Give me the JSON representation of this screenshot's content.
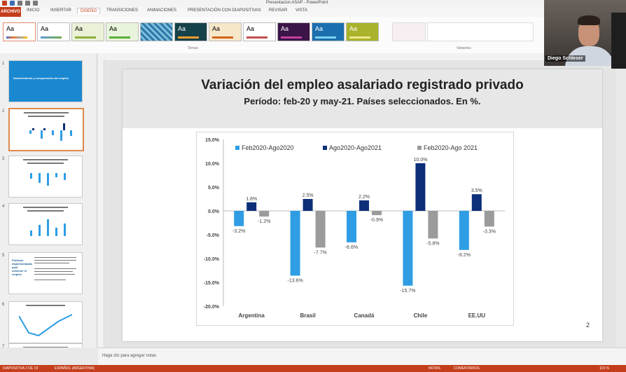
{
  "window": {
    "title": "Presentacion ASAP - PowerPoint"
  },
  "ribbon": {
    "tabs": [
      "ARCHIVO",
      "INICIO",
      "INSERTAR",
      "DISEÑO",
      "TRANSICIONES",
      "ANIMACIONES",
      "PRESENTACIÓN CON DIAPOSITIVAS",
      "REVISAR",
      "VISTA"
    ],
    "active_tab": "DISEÑO",
    "group_temas": "Temas",
    "group_variantes": "Variantes",
    "theme_label": "Aa"
  },
  "thumbnails": [
    {
      "num": "1",
      "title": "Sostenimiento y recuperación del empleo"
    },
    {
      "num": "2"
    },
    {
      "num": "3"
    },
    {
      "num": "4"
    },
    {
      "num": "5",
      "title": "Políticas implementadas para sostener el empleo"
    },
    {
      "num": "6"
    },
    {
      "num": "7"
    }
  ],
  "slide": {
    "title": "Variación del empleo asalariado registrado privado",
    "subtitle": "Período: feb-20 y may-21. Países seleccionados. En %.",
    "number": "2"
  },
  "notes": {
    "placeholder": "Haga clic para agregar notas"
  },
  "status": {
    "slide_info": "DIAPOSITIVA 2 DE 19",
    "language": "ESPAÑOL (ARGENTINA)",
    "notes_btn": "NOTAS",
    "comments_btn": "COMENTARIOS",
    "zoom": "115 %"
  },
  "webcam": {
    "name": "Diego Schleser"
  },
  "colors": {
    "accent": "#c43e1c",
    "series1": "#2e9de4",
    "series2": "#0d2f7a",
    "series3": "#9b9b9b"
  },
  "chart_data": {
    "type": "bar",
    "categories": [
      "Argentina",
      "Brasil",
      "Canadá",
      "Chile",
      "EE.UU"
    ],
    "series": [
      {
        "name": "Feb2020-Ago2020",
        "values": [
          -3.2,
          -13.6,
          -6.6,
          -15.7,
          -8.2
        ],
        "labels": [
          "-3.2%",
          "-13.6%",
          "-6.6%",
          "-15.7%",
          "-8.2%"
        ]
      },
      {
        "name": "Ago2020-Ago2021",
        "values": [
          1.8,
          2.5,
          2.2,
          10.0,
          3.5
        ],
        "labels": [
          "1.8%",
          "2.5%",
          "2.2%",
          "10.0%",
          "3.5%"
        ]
      },
      {
        "name": "Feb2020-Ago 2021",
        "values": [
          -1.2,
          -7.7,
          -0.9,
          -5.8,
          -3.3
        ],
        "labels": [
          "-1.2%",
          "-7.7%",
          "-0.9%",
          "-5.8%",
          "-3.3%"
        ]
      }
    ],
    "yticks": [
      "15.0%",
      "10.0%",
      "5.0%",
      "0.0%",
      "-5.0%",
      "-10.0%",
      "-15.0%",
      "-20.0%"
    ],
    "ylim": [
      -20,
      15
    ],
    "legend": "top",
    "grid": false
  }
}
